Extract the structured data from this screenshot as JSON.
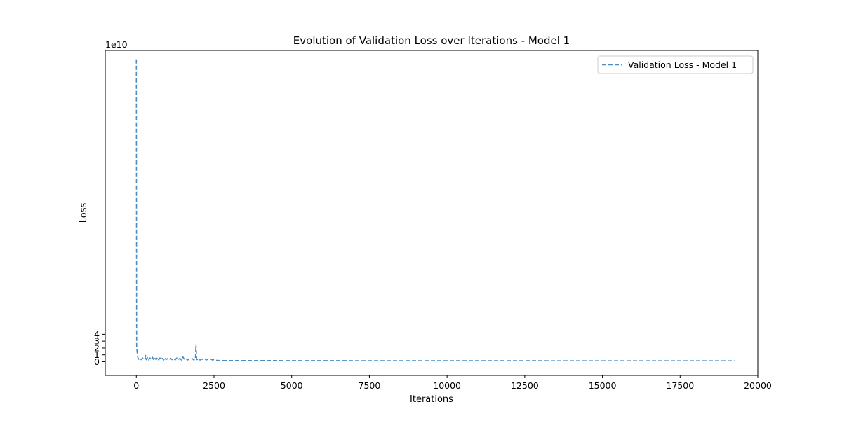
{
  "chart_data": {
    "type": "line",
    "title": "Evolution of Validation Loss over Iterations - Model 1",
    "xlabel": "Iterations",
    "ylabel": "Loss",
    "y_offset_label": "1e10",
    "xlim": [
      -1000,
      20000
    ],
    "ylim": [
      -2.0,
      45.5
    ],
    "y_unit_multiplier": 10000000000,
    "xticks": [
      0,
      2500,
      5000,
      7500,
      10000,
      12500,
      15000,
      17500,
      20000
    ],
    "yticks": [
      0,
      1,
      2,
      3,
      4
    ],
    "grid": false,
    "legend": {
      "position": "top-right",
      "entries": [
        "Validation Loss - Model 1"
      ]
    },
    "series": [
      {
        "name": "Validation Loss - Model 1",
        "color": "#4a8cbf",
        "linestyle": "dashed",
        "x": [
          0,
          10,
          25,
          50,
          80,
          120,
          160,
          200,
          240,
          280,
          300,
          320,
          360,
          400,
          440,
          480,
          520,
          560,
          600,
          640,
          680,
          720,
          760,
          800,
          840,
          880,
          920,
          960,
          1000,
          1050,
          1100,
          1150,
          1200,
          1250,
          1300,
          1350,
          1400,
          1450,
          1500,
          1550,
          1600,
          1650,
          1700,
          1750,
          1800,
          1850,
          1900,
          1920,
          1940,
          1960,
          2000,
          2050,
          2100,
          2150,
          2200,
          2250,
          2300,
          2350,
          2400,
          2450,
          2500,
          2550,
          2600,
          3000,
          4000,
          5000,
          6000,
          7000,
          8000,
          9000,
          10000,
          11000,
          12000,
          13000,
          14000,
          15000,
          16000,
          17000,
          18000,
          19250
        ],
        "y": [
          44.2,
          2.3,
          1.4,
          0.6,
          0.35,
          0.5,
          0.3,
          0.55,
          0.3,
          0.45,
          0.9,
          0.3,
          0.6,
          0.25,
          0.55,
          0.3,
          0.65,
          0.25,
          0.5,
          0.3,
          0.6,
          0.25,
          0.55,
          0.3,
          0.5,
          0.25,
          0.6,
          0.3,
          0.45,
          0.25,
          0.5,
          0.3,
          0.45,
          0.25,
          0.55,
          0.3,
          0.5,
          0.25,
          0.7,
          0.3,
          0.45,
          0.25,
          0.4,
          0.3,
          0.45,
          0.25,
          0.35,
          2.5,
          0.4,
          0.3,
          0.45,
          0.25,
          0.4,
          0.3,
          0.45,
          0.25,
          0.35,
          0.3,
          0.4,
          0.25,
          0.3,
          0.25,
          0.18,
          0.17,
          0.17,
          0.16,
          0.16,
          0.15,
          0.15,
          0.15,
          0.14,
          0.14,
          0.14,
          0.14,
          0.13,
          0.13,
          0.13,
          0.13,
          0.13,
          0.13
        ]
      }
    ]
  }
}
